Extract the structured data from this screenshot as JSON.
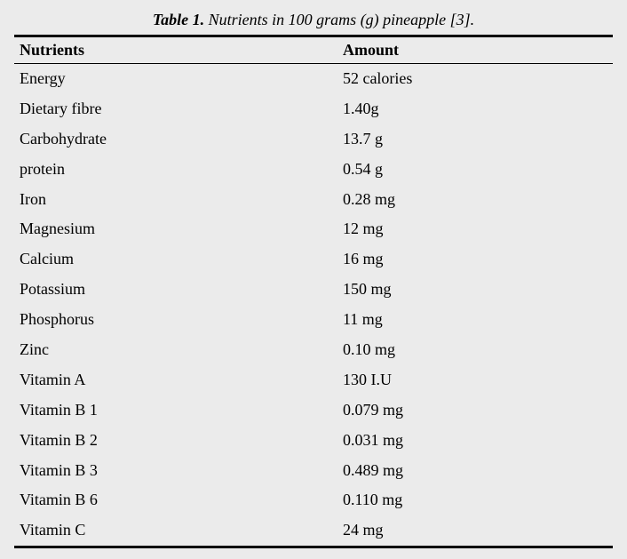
{
  "caption": {
    "label": "Table 1.",
    "text": " Nutrients in 100 grams (g) pineapple [3]."
  },
  "table": {
    "columns": [
      "Nutrients",
      "Amount"
    ],
    "rows": [
      [
        "Energy",
        "52 calories"
      ],
      [
        "Dietary fibre",
        "1.40g"
      ],
      [
        "Carbohydrate",
        "13.7 g"
      ],
      [
        "protein",
        "0.54 g"
      ],
      [
        "Iron",
        "0.28 mg"
      ],
      [
        "Magnesium",
        "12 mg"
      ],
      [
        "Calcium",
        "16 mg"
      ],
      [
        "Potassium",
        "150 mg"
      ],
      [
        "Phosphorus",
        "11 mg"
      ],
      [
        "Zinc",
        "0.10 mg"
      ],
      [
        "Vitamin A",
        "130 I.U"
      ],
      [
        "Vitamin B 1",
        "0.079 mg"
      ],
      [
        "Vitamin B 2",
        "0.031 mg"
      ],
      [
        "Vitamin B 3",
        "0.489 mg"
      ],
      [
        "Vitamin B 6",
        "0.110 mg"
      ],
      [
        "Vitamin C",
        "24 mg"
      ]
    ]
  }
}
